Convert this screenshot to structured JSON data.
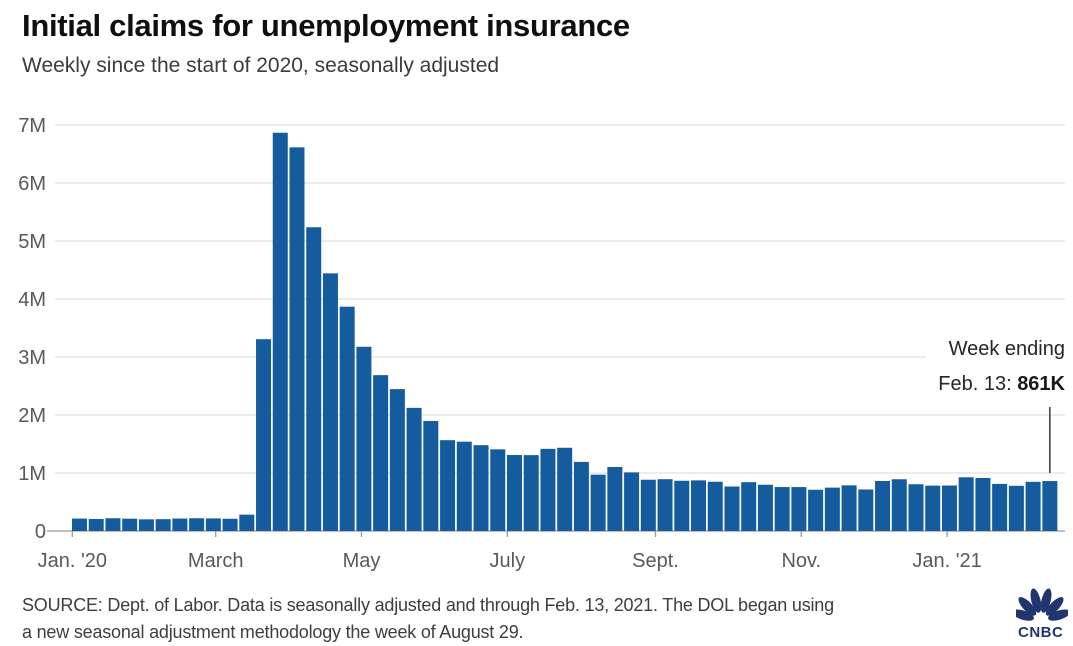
{
  "header": {
    "title": "Initial claims for unemployment insurance",
    "subtitle": "Weekly since the start of 2020, seasonally adjusted"
  },
  "annotation": {
    "line1": "Week ending",
    "line2_label": "Feb. 13: ",
    "line2_value": "861K"
  },
  "source": {
    "line1": "SOURCE: Dept. of Labor. Data is seasonally adjusted and through Feb. 13, 2021. The DOL began using",
    "line2": "a new seasonal adjustment methodology the week of August 29."
  },
  "logo": {
    "brand": "CNBC"
  },
  "colors": {
    "bar": "#155C9E",
    "grid": "#DADADA",
    "axis": "#999999",
    "tick_label": "#58595B",
    "title": "#0F0F0F",
    "subtitle": "#3C3C3C",
    "annotation_text": "#262626",
    "leader_line": "#3A3A3A",
    "source_text": "#3E3E3E",
    "logo_navy": "#21366F"
  },
  "chart_data": {
    "type": "bar",
    "title": "Initial claims for unemployment insurance",
    "subtitle": "Weekly since the start of 2020, seasonally adjusted",
    "unit": "initial jobless claims per week",
    "values_unit": "thousands of claims",
    "ylim_millions": [
      0,
      7
    ],
    "grid": "horizontal",
    "legend": "none",
    "yticks": [
      {
        "label": "0",
        "value": 0
      },
      {
        "label": "1M",
        "value": 1
      },
      {
        "label": "2M",
        "value": 2
      },
      {
        "label": "3M",
        "value": 3
      },
      {
        "label": "4M",
        "value": 4
      },
      {
        "label": "5M",
        "value": 5
      },
      {
        "label": "6M",
        "value": 6
      },
      {
        "label": "7M",
        "value": 7
      }
    ],
    "xticks": [
      {
        "label": "Jan. '20",
        "date": "2020-01-01"
      },
      {
        "label": "March",
        "date": "2020-03-01"
      },
      {
        "label": "May",
        "date": "2020-05-01"
      },
      {
        "label": "July",
        "date": "2020-07-01"
      },
      {
        "label": "Sept.",
        "date": "2020-09-01"
      },
      {
        "label": "Nov.",
        "date": "2020-11-01"
      },
      {
        "label": "Jan. '21",
        "date": "2021-01-01"
      }
    ],
    "week_ending_dates": [
      "2020-01-04",
      "2020-01-11",
      "2020-01-18",
      "2020-01-25",
      "2020-02-01",
      "2020-02-08",
      "2020-02-15",
      "2020-02-22",
      "2020-02-29",
      "2020-03-07",
      "2020-03-14",
      "2020-03-21",
      "2020-03-28",
      "2020-04-04",
      "2020-04-11",
      "2020-04-18",
      "2020-04-25",
      "2020-05-02",
      "2020-05-09",
      "2020-05-16",
      "2020-05-23",
      "2020-05-30",
      "2020-06-06",
      "2020-06-13",
      "2020-06-20",
      "2020-06-27",
      "2020-07-04",
      "2020-07-11",
      "2020-07-18",
      "2020-07-25",
      "2020-08-01",
      "2020-08-08",
      "2020-08-15",
      "2020-08-22",
      "2020-08-29",
      "2020-09-05",
      "2020-09-12",
      "2020-09-19",
      "2020-09-26",
      "2020-10-03",
      "2020-10-10",
      "2020-10-17",
      "2020-10-24",
      "2020-10-31",
      "2020-11-07",
      "2020-11-14",
      "2020-11-21",
      "2020-11-28",
      "2020-12-05",
      "2020-12-12",
      "2020-12-19",
      "2020-12-26",
      "2021-01-02",
      "2021-01-09",
      "2021-01-16",
      "2021-01-23",
      "2021-01-30",
      "2021-02-06",
      "2021-02-13"
    ],
    "values_thousands": [
      214,
      207,
      220,
      212,
      201,
      204,
      215,
      220,
      217,
      211,
      282,
      3307,
      6867,
      6615,
      5237,
      4442,
      3867,
      3176,
      2687,
      2446,
      2123,
      1897,
      1566,
      1540,
      1480,
      1408,
      1310,
      1308,
      1416,
      1435,
      1191,
      971,
      1104,
      1011,
      884,
      893,
      866,
      873,
      849,
      767,
      842,
      797,
      758,
      757,
      711,
      748,
      787,
      716,
      862,
      892,
      806,
      782,
      784,
      926,
      914,
      812,
      779,
      848,
      861
    ],
    "annotated_point": {
      "date": "2021-02-13",
      "label": "Week ending Feb. 13: 861K",
      "value_thousands": 861
    }
  }
}
